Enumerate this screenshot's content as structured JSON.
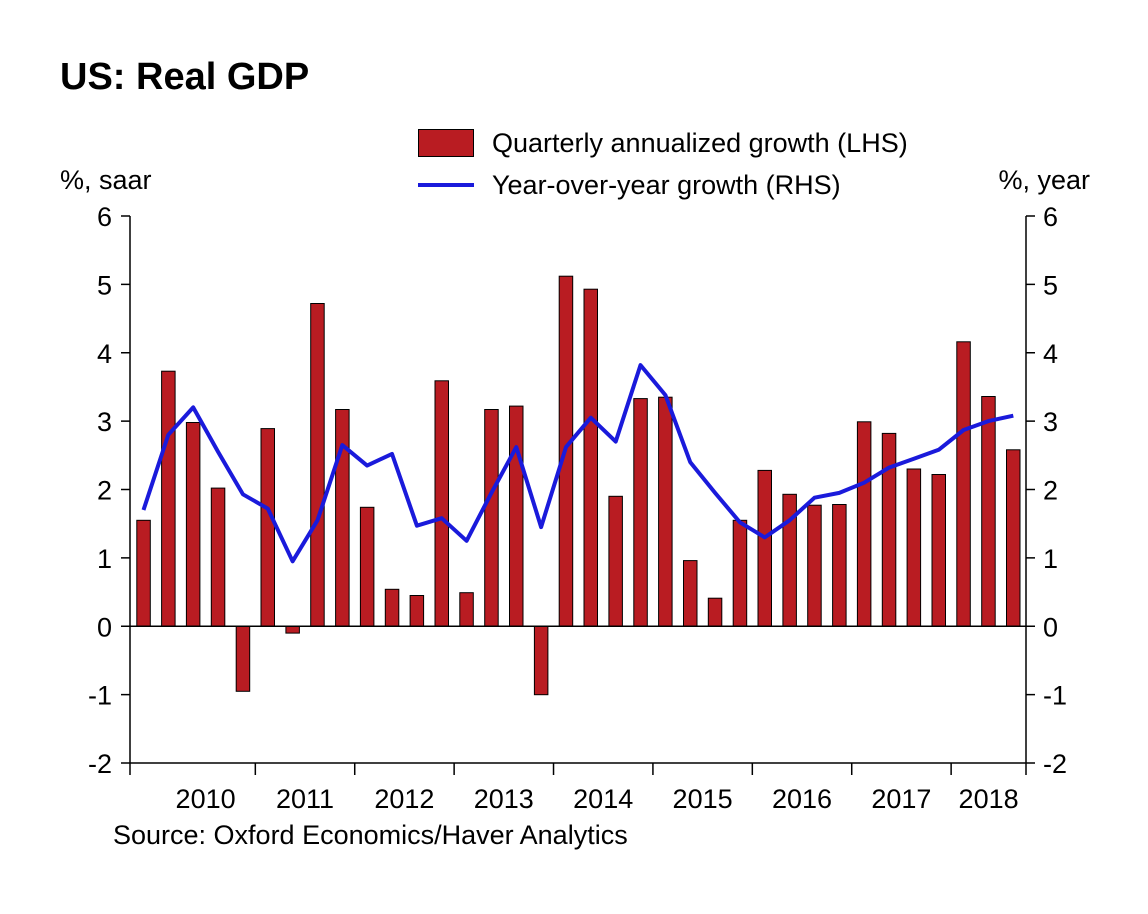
{
  "title": "US: Real GDP",
  "source": "Source: Oxford Economics/Haver Analytics",
  "colors": {
    "bars": "#b91c22",
    "line": "#1a1adb",
    "axis": "#000000"
  },
  "chart_data": {
    "type": "bar",
    "title": "US: Real GDP",
    "left_axis_label": "%, saar",
    "right_axis_label": "%, year",
    "ylim_left": [
      -2,
      6
    ],
    "ylim_right": [
      -2,
      6
    ],
    "yticks": [
      "6",
      "5",
      "4",
      "3",
      "2",
      "1",
      "0",
      "-1",
      "-2"
    ],
    "years": [
      "2010",
      "2011",
      "2012",
      "2013",
      "2014",
      "2015",
      "2016",
      "2017",
      "2018"
    ],
    "quarters": [
      "2009Q4",
      "2010Q1",
      "2010Q2",
      "2010Q3",
      "2010Q4",
      "2011Q1",
      "2011Q2",
      "2011Q3",
      "2011Q4",
      "2012Q1",
      "2012Q2",
      "2012Q3",
      "2012Q4",
      "2013Q1",
      "2013Q2",
      "2013Q3",
      "2013Q4",
      "2014Q1",
      "2014Q2",
      "2014Q3",
      "2014Q4",
      "2015Q1",
      "2015Q2",
      "2015Q3",
      "2015Q4",
      "2016Q1",
      "2016Q2",
      "2016Q3",
      "2016Q4",
      "2017Q1",
      "2017Q2",
      "2017Q3",
      "2017Q4",
      "2018Q1",
      "2018Q2",
      "2018Q3"
    ],
    "series": [
      {
        "name": "Quarterly annualized growth (LHS)",
        "type": "bar",
        "axis": "left",
        "values": [
          1.55,
          3.73,
          2.98,
          2.02,
          -0.95,
          2.89,
          -0.1,
          4.72,
          3.17,
          1.74,
          0.54,
          0.45,
          3.59,
          0.49,
          3.17,
          3.22,
          -1.0,
          5.12,
          4.93,
          1.9,
          3.33,
          3.35,
          0.96,
          0.41,
          1.55,
          2.28,
          1.93,
          1.77,
          1.78,
          2.99,
          2.82,
          2.3,
          2.22,
          4.16,
          3.36,
          2.58
        ]
      },
      {
        "name": "Year-over-year growth (RHS)",
        "type": "line",
        "axis": "right",
        "values": [
          1.7,
          2.8,
          3.2,
          2.55,
          1.93,
          1.72,
          0.95,
          1.55,
          2.65,
          2.35,
          2.52,
          1.47,
          1.58,
          1.25,
          1.95,
          2.62,
          1.45,
          2.62,
          3.05,
          2.7,
          3.82,
          3.38,
          2.4,
          1.95,
          1.52,
          1.3,
          1.55,
          1.88,
          1.95,
          2.1,
          2.32,
          2.45,
          2.58,
          2.87,
          3.0,
          3.08
        ]
      }
    ]
  }
}
